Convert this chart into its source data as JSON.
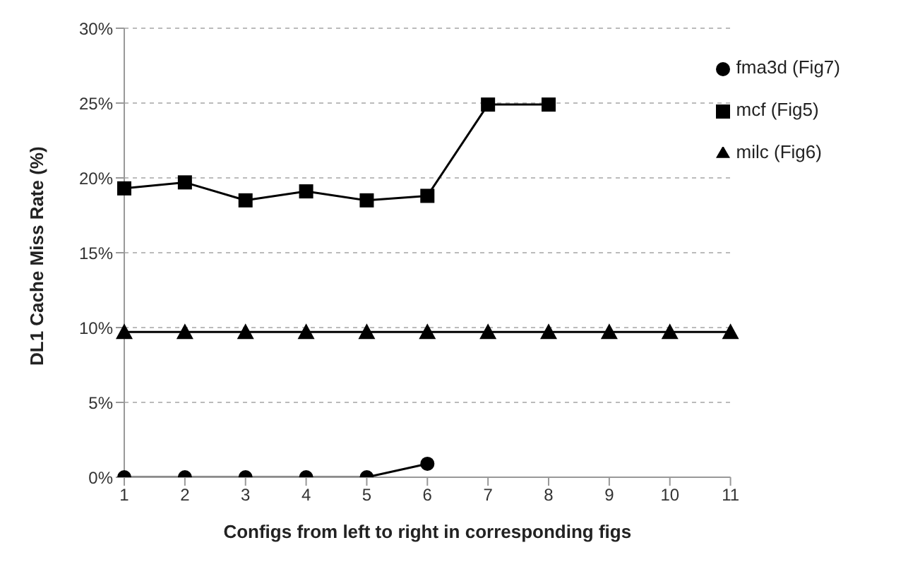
{
  "chart_data": {
    "type": "line",
    "xlabel": "Configs from left to right in corresponding figs",
    "ylabel": "DL1 Cache Miss Rate (%)",
    "categories": [
      "1",
      "2",
      "3",
      "4",
      "5",
      "6",
      "7",
      "8",
      "9",
      "10",
      "11"
    ],
    "series": [
      {
        "name": "mcf (Fig5)",
        "color": "#000000",
        "marker": "square",
        "values": [
          19.3,
          19.7,
          18.5,
          19.1,
          18.5,
          18.8,
          24.9,
          24.9,
          null,
          null,
          null
        ]
      },
      {
        "name": "milc (Fig6)",
        "color": "#000000",
        "marker": "triangle",
        "values": [
          9.7,
          9.7,
          9.7,
          9.7,
          9.7,
          9.7,
          9.7,
          9.7,
          9.7,
          9.7,
          9.7
        ]
      },
      {
        "name": "fma3d (Fig7)",
        "color": "#000000",
        "marker": "circle",
        "values": [
          0,
          0,
          0,
          0,
          0,
          0.9,
          null,
          null,
          null,
          null,
          null
        ]
      }
    ],
    "ylim": [
      0,
      30
    ],
    "yticks": [
      {
        "value": 0,
        "label": "0%"
      },
      {
        "value": 5,
        "label": "5%"
      },
      {
        "value": 10,
        "label": "10%"
      },
      {
        "value": 15,
        "label": "15%"
      },
      {
        "value": 20,
        "label": "20%"
      },
      {
        "value": 25,
        "label": "25%"
      },
      {
        "value": 30,
        "label": "30%"
      }
    ],
    "grid": "y",
    "legend": "top right",
    "line_style": "solid"
  }
}
